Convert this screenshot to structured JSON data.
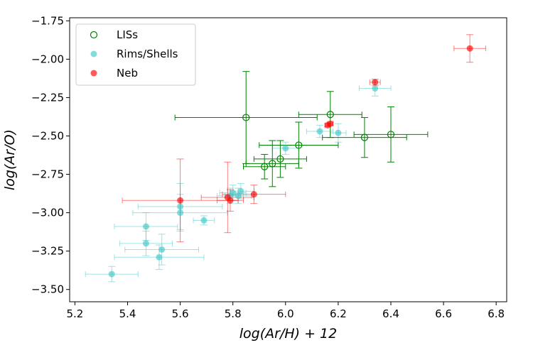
{
  "chart_data": {
    "type": "scatter",
    "title": "",
    "xlabel": "log(Ar/H) + 12",
    "ylabel": "log(Ar/O)",
    "xlim": [
      5.18,
      6.84
    ],
    "ylim": [
      -3.58,
      -1.73
    ],
    "xticks": [
      5.2,
      5.4,
      5.6,
      5.8,
      6.0,
      6.2,
      6.4,
      6.6,
      6.8
    ],
    "xtick_labels": [
      "5.2",
      "5.4",
      "5.6",
      "5.8",
      "6.0",
      "6.2",
      "6.4",
      "6.6",
      "6.8"
    ],
    "yticks": [
      -1.75,
      -2.0,
      -2.25,
      -2.5,
      -2.75,
      -3.0,
      -3.25,
      -3.5
    ],
    "ytick_labels": [
      "−1.75",
      "−2.00",
      "−2.25",
      "−2.50",
      "−2.75",
      "−3.00",
      "−3.25",
      "−3.50"
    ],
    "grid": false,
    "legend_position": "top-left",
    "series": [
      {
        "name": "LISs",
        "color": "#008000",
        "marker": "open-circle",
        "points": [
          {
            "x": 5.85,
            "y": -2.38,
            "xerr": [
              0.27,
              0.27
            ],
            "yerr": [
              0.3,
              0.3
            ]
          },
          {
            "x": 5.92,
            "y": -2.7,
            "xerr": [
              0.08,
              0.08
            ],
            "yerr": [
              0.08,
              0.08
            ]
          },
          {
            "x": 5.95,
            "y": -2.68,
            "xerr": [
              0.1,
              0.1
            ],
            "yerr": [
              0.15,
              0.15
            ]
          },
          {
            "x": 5.98,
            "y": -2.65,
            "xerr": [
              0.1,
              0.1
            ],
            "yerr": [
              0.12,
              0.12
            ]
          },
          {
            "x": 6.05,
            "y": -2.56,
            "xerr": [
              0.15,
              0.15
            ],
            "yerr": [
              0.15,
              0.15
            ]
          },
          {
            "x": 6.17,
            "y": -2.36,
            "xerr": [
              0.12,
              0.12
            ],
            "yerr": [
              0.15,
              0.15
            ]
          },
          {
            "x": 6.3,
            "y": -2.51,
            "xerr": [
              0.16,
              0.16
            ],
            "yerr": [
              0.13,
              0.13
            ]
          },
          {
            "x": 6.4,
            "y": -2.49,
            "xerr": [
              0.14,
              0.14
            ],
            "yerr": [
              0.18,
              0.18
            ]
          }
        ]
      },
      {
        "name": "Rims/Shells",
        "color": "#40c8c8",
        "marker": "filled-circle",
        "points": [
          {
            "x": 5.34,
            "y": -3.4,
            "xerr": [
              0.1,
              0.1
            ],
            "yerr": [
              0.05,
              0.05
            ]
          },
          {
            "x": 5.47,
            "y": -3.09,
            "xerr": [
              0.12,
              0.12
            ],
            "yerr": [
              0.09,
              0.09
            ]
          },
          {
            "x": 5.47,
            "y": -3.2,
            "xerr": [
              0.1,
              0.1
            ],
            "yerr": [
              0.08,
              0.08
            ]
          },
          {
            "x": 5.52,
            "y": -3.29,
            "xerr": [
              0.17,
              0.17
            ],
            "yerr": [
              0.08,
              0.08
            ]
          },
          {
            "x": 5.53,
            "y": -3.24,
            "xerr": [
              0.14,
              0.14
            ],
            "yerr": [
              0.1,
              0.1
            ]
          },
          {
            "x": 5.6,
            "y": -2.96,
            "xerr": [
              0.16,
              0.16
            ],
            "yerr": [
              0.15,
              0.15
            ]
          },
          {
            "x": 5.6,
            "y": -3.0,
            "xerr": [
              0.18,
              0.18
            ],
            "yerr": [
              0.12,
              0.12
            ]
          },
          {
            "x": 5.69,
            "y": -3.05,
            "xerr": [
              0.04,
              0.04
            ],
            "yerr": [
              0.03,
              0.03
            ]
          },
          {
            "x": 5.79,
            "y": -2.89,
            "xerr": [
              0.05,
              0.05
            ],
            "yerr": [
              0.05,
              0.05
            ]
          },
          {
            "x": 5.8,
            "y": -2.87,
            "xerr": [
              0.05,
              0.05
            ],
            "yerr": [
              0.05,
              0.05
            ]
          },
          {
            "x": 5.82,
            "y": -2.89,
            "xerr": [
              0.05,
              0.05
            ],
            "yerr": [
              0.05,
              0.05
            ]
          },
          {
            "x": 5.83,
            "y": -2.86,
            "xerr": [
              0.05,
              0.05
            ],
            "yerr": [
              0.05,
              0.05
            ]
          },
          {
            "x": 6.0,
            "y": -2.58,
            "xerr": [
              0.05,
              0.05
            ],
            "yerr": [
              0.04,
              0.04
            ]
          },
          {
            "x": 6.13,
            "y": -2.47,
            "xerr": [
              0.05,
              0.05
            ],
            "yerr": [
              0.04,
              0.04
            ]
          },
          {
            "x": 6.2,
            "y": -2.48,
            "xerr": [
              0.03,
              0.03
            ],
            "yerr": [
              0.06,
              0.06
            ]
          },
          {
            "x": 6.34,
            "y": -2.19,
            "xerr": [
              0.06,
              0.06
            ],
            "yerr": [
              0.05,
              0.05
            ]
          }
        ]
      },
      {
        "name": "Neb",
        "color": "#ff0000",
        "marker": "filled-circle",
        "points": [
          {
            "x": 5.6,
            "y": -2.92,
            "xerr": [
              0.22,
              0.22
            ],
            "yerr": [
              0.27,
              0.27
            ]
          },
          {
            "x": 5.78,
            "y": -2.9,
            "xerr": [
              0.1,
              0.1
            ],
            "yerr": [
              0.23,
              0.23
            ]
          },
          {
            "x": 5.79,
            "y": -2.92,
            "xerr": [
              0.05,
              0.05
            ],
            "yerr": [
              0.07,
              0.07
            ]
          },
          {
            "x": 5.88,
            "y": -2.88,
            "xerr": [
              0.12,
              0.12
            ],
            "yerr": [
              0.06,
              0.06
            ]
          },
          {
            "x": 6.16,
            "y": -2.43,
            "xerr": [
              0.01,
              0.01
            ],
            "yerr": [
              0.01,
              0.01
            ]
          },
          {
            "x": 6.17,
            "y": -2.42,
            "xerr": [
              0.01,
              0.01
            ],
            "yerr": [
              0.01,
              0.01
            ]
          },
          {
            "x": 6.34,
            "y": -2.15,
            "xerr": [
              0.02,
              0.02
            ],
            "yerr": [
              0.02,
              0.02
            ]
          },
          {
            "x": 6.7,
            "y": -1.93,
            "xerr": [
              0.06,
              0.06
            ],
            "yerr": [
              0.09,
              0.09
            ]
          }
        ]
      }
    ]
  }
}
